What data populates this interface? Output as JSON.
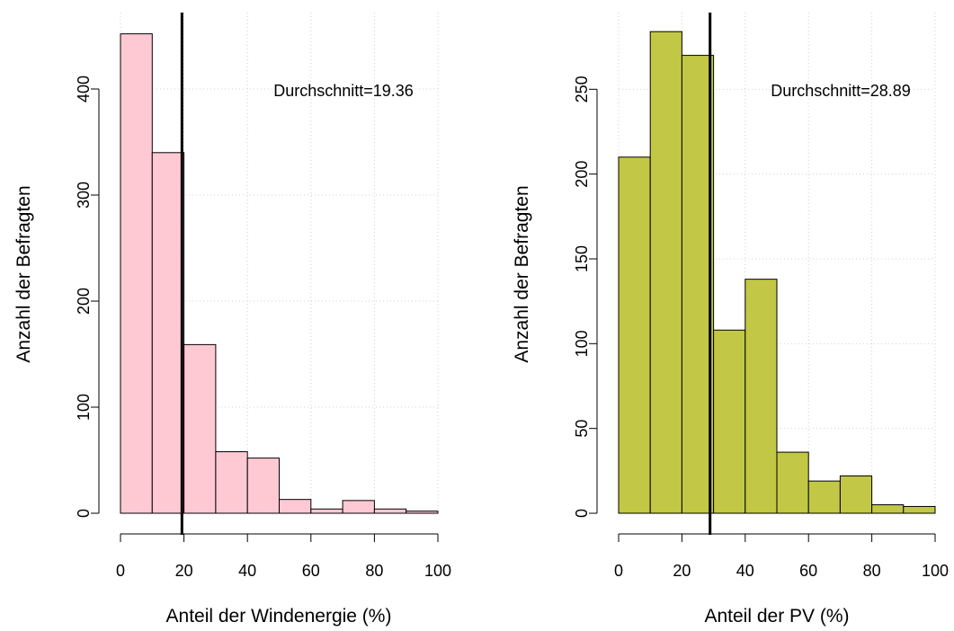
{
  "chart_data": [
    {
      "type": "bar",
      "bin_edges": [
        0,
        10,
        20,
        30,
        40,
        50,
        60,
        70,
        80,
        90,
        100
      ],
      "values": [
        452,
        340,
        159,
        58,
        52,
        13,
        4,
        12,
        4,
        2
      ],
      "mean": 19.36,
      "annotation": "Durchschnitt=19.36",
      "xlabel": "Anteil der Windenergie (%)",
      "ylabel": "Anzahl der Befragten",
      "xlim": [
        0,
        100
      ],
      "ylim": [
        0,
        470
      ],
      "xticks": [
        0,
        20,
        40,
        60,
        80,
        100
      ],
      "yticks": [
        0,
        100,
        200,
        300,
        400
      ],
      "grid": true,
      "color": "#FFC9D4"
    },
    {
      "type": "bar",
      "bin_edges": [
        0,
        10,
        20,
        30,
        40,
        50,
        60,
        70,
        80,
        90,
        100
      ],
      "values": [
        210,
        284,
        270,
        108,
        138,
        36,
        19,
        22,
        5,
        4
      ],
      "mean": 28.89,
      "annotation": "Durchschnitt=28.89",
      "xlabel": "Anteil der PV (%)",
      "ylabel": "Anzahl der Befragten",
      "xlim": [
        0,
        100
      ],
      "ylim": [
        0,
        300
      ],
      "xticks": [
        0,
        20,
        40,
        60,
        80,
        100
      ],
      "yticks": [
        0,
        50,
        100,
        150,
        200,
        250
      ],
      "grid": true,
      "color": "#C2C845"
    }
  ]
}
